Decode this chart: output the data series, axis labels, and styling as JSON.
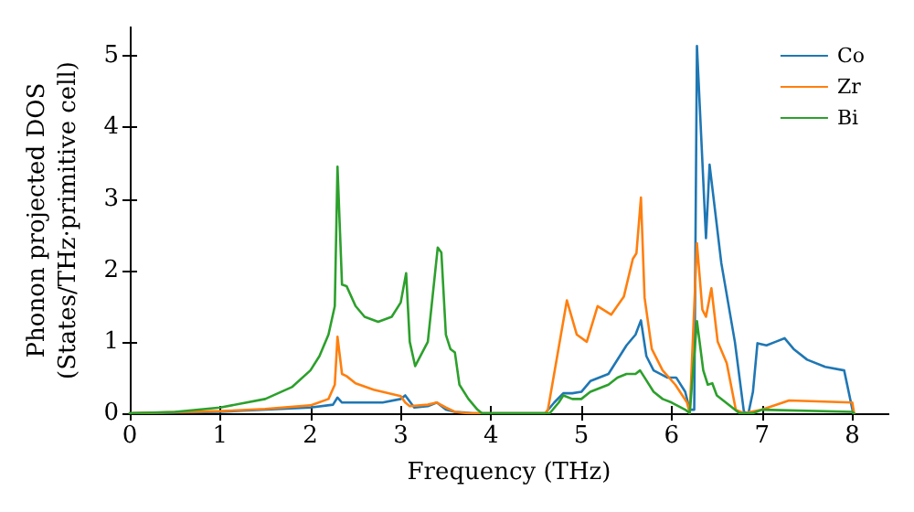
{
  "chart_data": {
    "type": "line",
    "xlabel": "Frequency (THz)",
    "ylabel": "Phonon projected DOS\n(States/THz·primitive cell)",
    "xlim": [
      0,
      8.4
    ],
    "xticks": [
      0,
      1,
      2,
      3,
      4,
      5,
      6,
      7,
      8
    ],
    "ylim": [
      0,
      5.4
    ],
    "yticks": [
      0,
      1,
      2,
      3,
      4,
      5
    ],
    "grid": false,
    "legend": "top right",
    "marker": "none",
    "line_style": "solid",
    "series": [
      {
        "name": "Co",
        "color": "#1f77b4",
        "x": [
          0,
          1,
          2,
          2.25,
          2.3,
          2.35,
          2.8,
          3.0,
          3.05,
          3.15,
          3.3,
          3.4,
          3.5,
          3.6,
          3.8,
          4.6,
          4.7,
          4.8,
          4.9,
          5.0,
          5.1,
          5.3,
          5.5,
          5.6,
          5.66,
          5.72,
          5.8,
          5.95,
          6.05,
          6.15,
          6.2,
          6.25,
          6.28,
          6.38,
          6.42,
          6.55,
          6.7,
          6.8,
          6.85,
          6.9,
          6.95,
          7.05,
          7.15,
          7.25,
          7.35,
          7.5,
          7.7,
          7.91,
          8.01
        ],
        "values": [
          0,
          0.02,
          0.08,
          0.12,
          0.22,
          0.15,
          0.15,
          0.2,
          0.25,
          0.08,
          0.1,
          0.15,
          0.05,
          0.02,
          0,
          0,
          0.15,
          0.28,
          0.28,
          0.3,
          0.45,
          0.55,
          0.95,
          1.1,
          1.3,
          0.8,
          0.6,
          0.5,
          0.5,
          0.3,
          0.05,
          0.05,
          5.14,
          2.45,
          3.48,
          2.1,
          1.0,
          0.02,
          0,
          0.3,
          0.98,
          0.95,
          1.0,
          1.05,
          0.9,
          0.75,
          0.65,
          0.6,
          0
        ]
      },
      {
        "name": "Zr",
        "color": "#ff7f0e",
        "x": [
          0,
          1,
          1.5,
          2.0,
          2.2,
          2.27,
          2.3,
          2.35,
          2.4,
          2.5,
          2.7,
          3.0,
          3.05,
          3.1,
          3.3,
          3.4,
          3.5,
          3.6,
          3.75,
          4.6,
          4.63,
          4.84,
          4.95,
          5.06,
          5.18,
          5.33,
          5.47,
          5.57,
          5.61,
          5.66,
          5.7,
          5.78,
          5.9,
          6.04,
          6.17,
          6.2,
          6.28,
          6.34,
          6.38,
          6.44,
          6.51,
          6.61,
          6.71,
          6.8,
          7.0,
          7.3,
          8.0,
          8.02
        ],
        "values": [
          0,
          0.03,
          0.06,
          0.11,
          0.2,
          0.4,
          1.07,
          0.55,
          0.52,
          0.42,
          0.33,
          0.24,
          0.15,
          0.1,
          0.12,
          0.15,
          0.08,
          0.02,
          0,
          0,
          0.05,
          1.58,
          1.1,
          1.0,
          1.5,
          1.38,
          1.63,
          2.16,
          2.24,
          3.02,
          1.62,
          0.9,
          0.6,
          0.4,
          0.15,
          0,
          2.38,
          1.45,
          1.35,
          1.75,
          1.0,
          0.7,
          0.05,
          0,
          0.05,
          0.18,
          0.15,
          0
        ]
      },
      {
        "name": "Bi",
        "color": "#2ca02c",
        "x": [
          0,
          0.5,
          1,
          1.5,
          1.8,
          2.0,
          2.1,
          2.2,
          2.27,
          2.3,
          2.35,
          2.4,
          2.5,
          2.6,
          2.75,
          2.9,
          3.0,
          3.06,
          3.1,
          3.16,
          3.3,
          3.41,
          3.45,
          3.5,
          3.55,
          3.6,
          3.65,
          3.75,
          3.85,
          3.9,
          4.65,
          4.75,
          4.8,
          4.9,
          5.0,
          5.1,
          5.3,
          5.4,
          5.5,
          5.6,
          5.65,
          5.7,
          5.8,
          5.9,
          6.0,
          6.15,
          6.2,
          6.28,
          6.35,
          6.4,
          6.45,
          6.5,
          6.6,
          6.7,
          6.75,
          6.9,
          7.0,
          8.0,
          8.02
        ],
        "values": [
          0,
          0.02,
          0.08,
          0.2,
          0.37,
          0.6,
          0.8,
          1.1,
          1.5,
          3.45,
          1.8,
          1.78,
          1.5,
          1.35,
          1.28,
          1.35,
          1.55,
          1.96,
          1.0,
          0.66,
          1.0,
          2.32,
          2.25,
          1.1,
          0.9,
          0.85,
          0.4,
          0.2,
          0.05,
          0,
          0,
          0.15,
          0.25,
          0.2,
          0.2,
          0.3,
          0.4,
          0.5,
          0.55,
          0.55,
          0.6,
          0.5,
          0.3,
          0.2,
          0.15,
          0.05,
          0,
          1.29,
          0.6,
          0.4,
          0.42,
          0.25,
          0.15,
          0.05,
          0,
          0,
          0.05,
          0.02,
          0
        ]
      }
    ]
  }
}
